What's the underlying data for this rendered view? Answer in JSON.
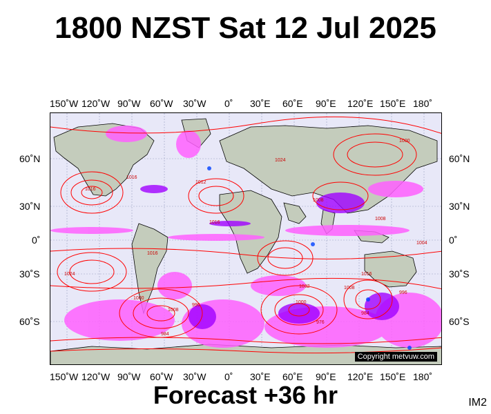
{
  "title": "1800 NZST Sat 12 Jul 2025",
  "forecast": "Forecast +36 hr",
  "product_code": "IM2",
  "copyright": "Copyright metvuw.com",
  "longitude_labels": [
    "150˚W",
    "120˚W",
    "90˚W",
    "60˚W",
    "30˚W",
    "0˚",
    "30˚E",
    "60˚E",
    "90˚E",
    "120˚E",
    "150˚E",
    "180˚"
  ],
  "latitude_labels": [
    "60˚N",
    "30˚N",
    "0˚",
    "30˚S",
    "60˚S"
  ],
  "pressure_labels": [
    "1016",
    "1016",
    "1024",
    "1012",
    "1008",
    "1008",
    "1004",
    "1016",
    "1016",
    "1024",
    "1032",
    "1000",
    "996",
    "984",
    "976",
    "1000",
    "1008",
    "1016",
    "996",
    "984",
    "1000",
    "1008"
  ],
  "colors": {
    "ocean": "#e8e8f8",
    "land": "#c4ccbc",
    "isobar": "#ff0000",
    "precip_light": "#ff60ff",
    "precip_mid": "#a000ff",
    "precip_heavy": "#0040ff"
  }
}
